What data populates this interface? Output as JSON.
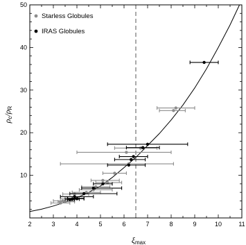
{
  "chart_data": {
    "type": "scatter",
    "xlabel": {
      "main": "ξ",
      "sub": "max"
    },
    "ylabel": {
      "part1": "ρ",
      "sub1": "c",
      "sep": "/",
      "part2": "ρ",
      "sub2": "R"
    },
    "xlim": [
      2,
      11
    ],
    "ylim": [
      0,
      50
    ],
    "xticks": [
      "2",
      "3",
      "4",
      "5",
      "6",
      "7",
      "8",
      "9",
      "10",
      "11"
    ],
    "yticks": [
      "10",
      "20",
      "30",
      "40",
      "50"
    ],
    "grid": false,
    "legend_position": "top-left",
    "reference_line": {
      "x": 6.5,
      "style": "dashed"
    },
    "model_curve": {
      "style": "solid",
      "points": [
        [
          2.0,
          1.5
        ],
        [
          2.5,
          2.05
        ],
        [
          3.0,
          2.8
        ],
        [
          3.5,
          3.7
        ],
        [
          4.0,
          4.75
        ],
        [
          4.5,
          6.0
        ],
        [
          5.0,
          7.5
        ],
        [
          5.5,
          9.5
        ],
        [
          6.0,
          11.8
        ],
        [
          6.5,
          14.2
        ],
        [
          7.0,
          17.0
        ],
        [
          7.5,
          19.8
        ],
        [
          8.0,
          23.0
        ],
        [
          8.5,
          26.5
        ],
        [
          9.0,
          30.5
        ],
        [
          9.5,
          35.0
        ],
        [
          10.0,
          40.0
        ],
        [
          10.5,
          45.3
        ],
        [
          10.9,
          50.0
        ]
      ]
    },
    "series": [
      {
        "name": "Starless Globules",
        "color": "#8c8c8c",
        "points": [
          {
            "x": 8.1,
            "y": 25.2,
            "xerr": [
              7.5,
              8.6
            ]
          },
          {
            "x": 8.2,
            "y": 25.8,
            "xerr": [
              7.4,
              9.0
            ]
          },
          {
            "x": 6.7,
            "y": 16.4,
            "xerr": [
              5.6,
              7.4
            ]
          },
          {
            "x": 6.1,
            "y": 15.4,
            "xerr": [
              4.0,
              8.0
            ]
          },
          {
            "x": 6.2,
            "y": 12.7,
            "xerr": [
              3.3,
              8.1
            ]
          },
          {
            "x": 5.6,
            "y": 10.5,
            "xerr": [
              5.1,
              6.1
            ]
          },
          {
            "x": 5.1,
            "y": 8.8,
            "xerr": [
              4.6,
              5.8
            ]
          },
          {
            "x": 5.3,
            "y": 8.3,
            "xerr": [
              4.8,
              5.9
            ]
          },
          {
            "x": 4.8,
            "y": 7.3,
            "xerr": [
              4.2,
              5.4
            ]
          },
          {
            "x": 4.7,
            "y": 6.6,
            "xerr": [
              4.1,
              5.5
            ]
          },
          {
            "x": 4.4,
            "y": 6.0,
            "xerr": [
              3.8,
              5.0
            ]
          },
          {
            "x": 3.9,
            "y": 5.6,
            "xerr": [
              3.4,
              4.5
            ]
          },
          {
            "x": 3.6,
            "y": 4.5,
            "xerr": [
              3.3,
              4.0
            ]
          },
          {
            "x": 3.4,
            "y": 4.0,
            "xerr": [
              3.0,
              3.9
            ]
          },
          {
            "x": 3.3,
            "y": 3.5,
            "xerr": [
              2.9,
              3.7
            ]
          },
          {
            "x": 3.5,
            "y": 3.8,
            "xerr": [
              3.2,
              3.9
            ]
          }
        ]
      },
      {
        "name": "IRAS Globules",
        "color": "#000000",
        "points": [
          {
            "x": 9.4,
            "y": 36.5,
            "xerr": [
              8.8,
              10.0
            ]
          },
          {
            "x": 7.0,
            "y": 17.3,
            "xerr": [
              5.3,
              8.7
            ]
          },
          {
            "x": 6.8,
            "y": 16.5,
            "xerr": [
              6.1,
              7.5
            ]
          },
          {
            "x": 6.4,
            "y": 14.4,
            "xerr": [
              5.8,
              7.0
            ]
          },
          {
            "x": 6.3,
            "y": 13.7,
            "xerr": [
              5.6,
              6.9
            ]
          },
          {
            "x": 6.2,
            "y": 12.4,
            "xerr": [
              5.3,
              6.9
            ]
          },
          {
            "x": 5.1,
            "y": 8.0,
            "xerr": [
              4.7,
              5.5
            ]
          },
          {
            "x": 4.7,
            "y": 7.0,
            "xerr": [
              4.2,
              5.9
            ]
          },
          {
            "x": 4.3,
            "y": 5.7,
            "xerr": [
              3.7,
              5.7
            ]
          },
          {
            "x": 3.9,
            "y": 5.0,
            "xerr": [
              3.3,
              4.7
            ]
          },
          {
            "x": 3.9,
            "y": 4.6,
            "xerr": [
              3.6,
              4.3
            ]
          },
          {
            "x": 3.8,
            "y": 4.4,
            "xerr": [
              3.5,
              4.1
            ]
          },
          {
            "x": 3.7,
            "y": 4.3,
            "xerr": [
              3.6,
              3.9
            ]
          },
          {
            "x": 4.0,
            "y": 4.5,
            "xerr": [
              3.8,
              4.3
            ]
          }
        ]
      }
    ]
  }
}
